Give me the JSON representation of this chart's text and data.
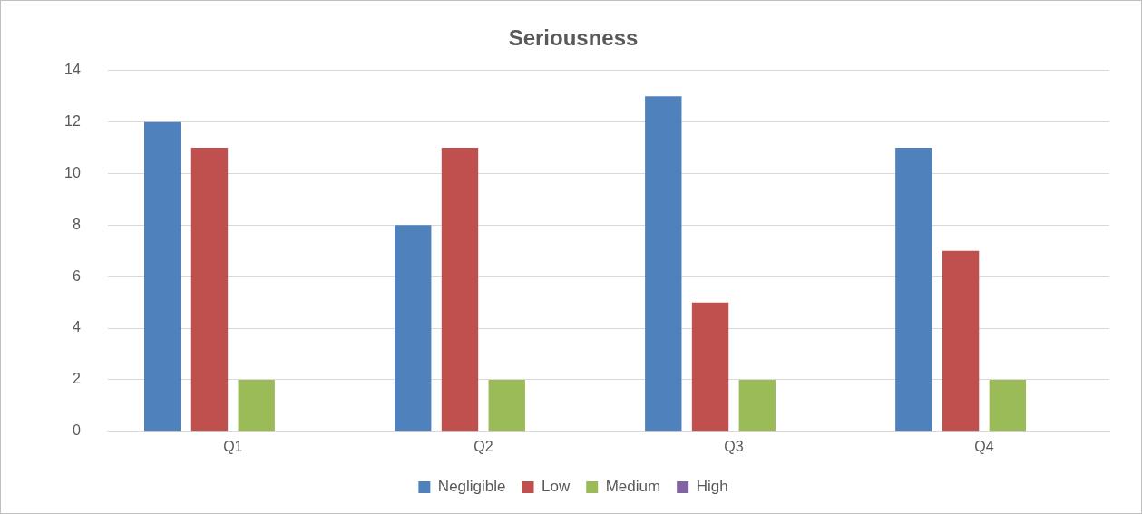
{
  "chart_data": {
    "type": "bar",
    "title": "Seriousness",
    "categories": [
      "Q1",
      "Q2",
      "Q3",
      "Q4"
    ],
    "series": [
      {
        "name": "Negligible",
        "color": "#4f81bd",
        "values": [
          12,
          8,
          13,
          11
        ]
      },
      {
        "name": "Low",
        "color": "#c0504d",
        "values": [
          11,
          11,
          5,
          7
        ]
      },
      {
        "name": "Medium",
        "color": "#9bbb59",
        "values": [
          2,
          2,
          2,
          2
        ]
      },
      {
        "name": "High",
        "color": "#8064a2",
        "values": [
          0,
          0,
          0,
          0
        ]
      }
    ],
    "ylim": [
      0,
      14
    ],
    "yticks": [
      0,
      2,
      4,
      6,
      8,
      10,
      12,
      14
    ],
    "grid": "y",
    "legend": "bottom"
  }
}
